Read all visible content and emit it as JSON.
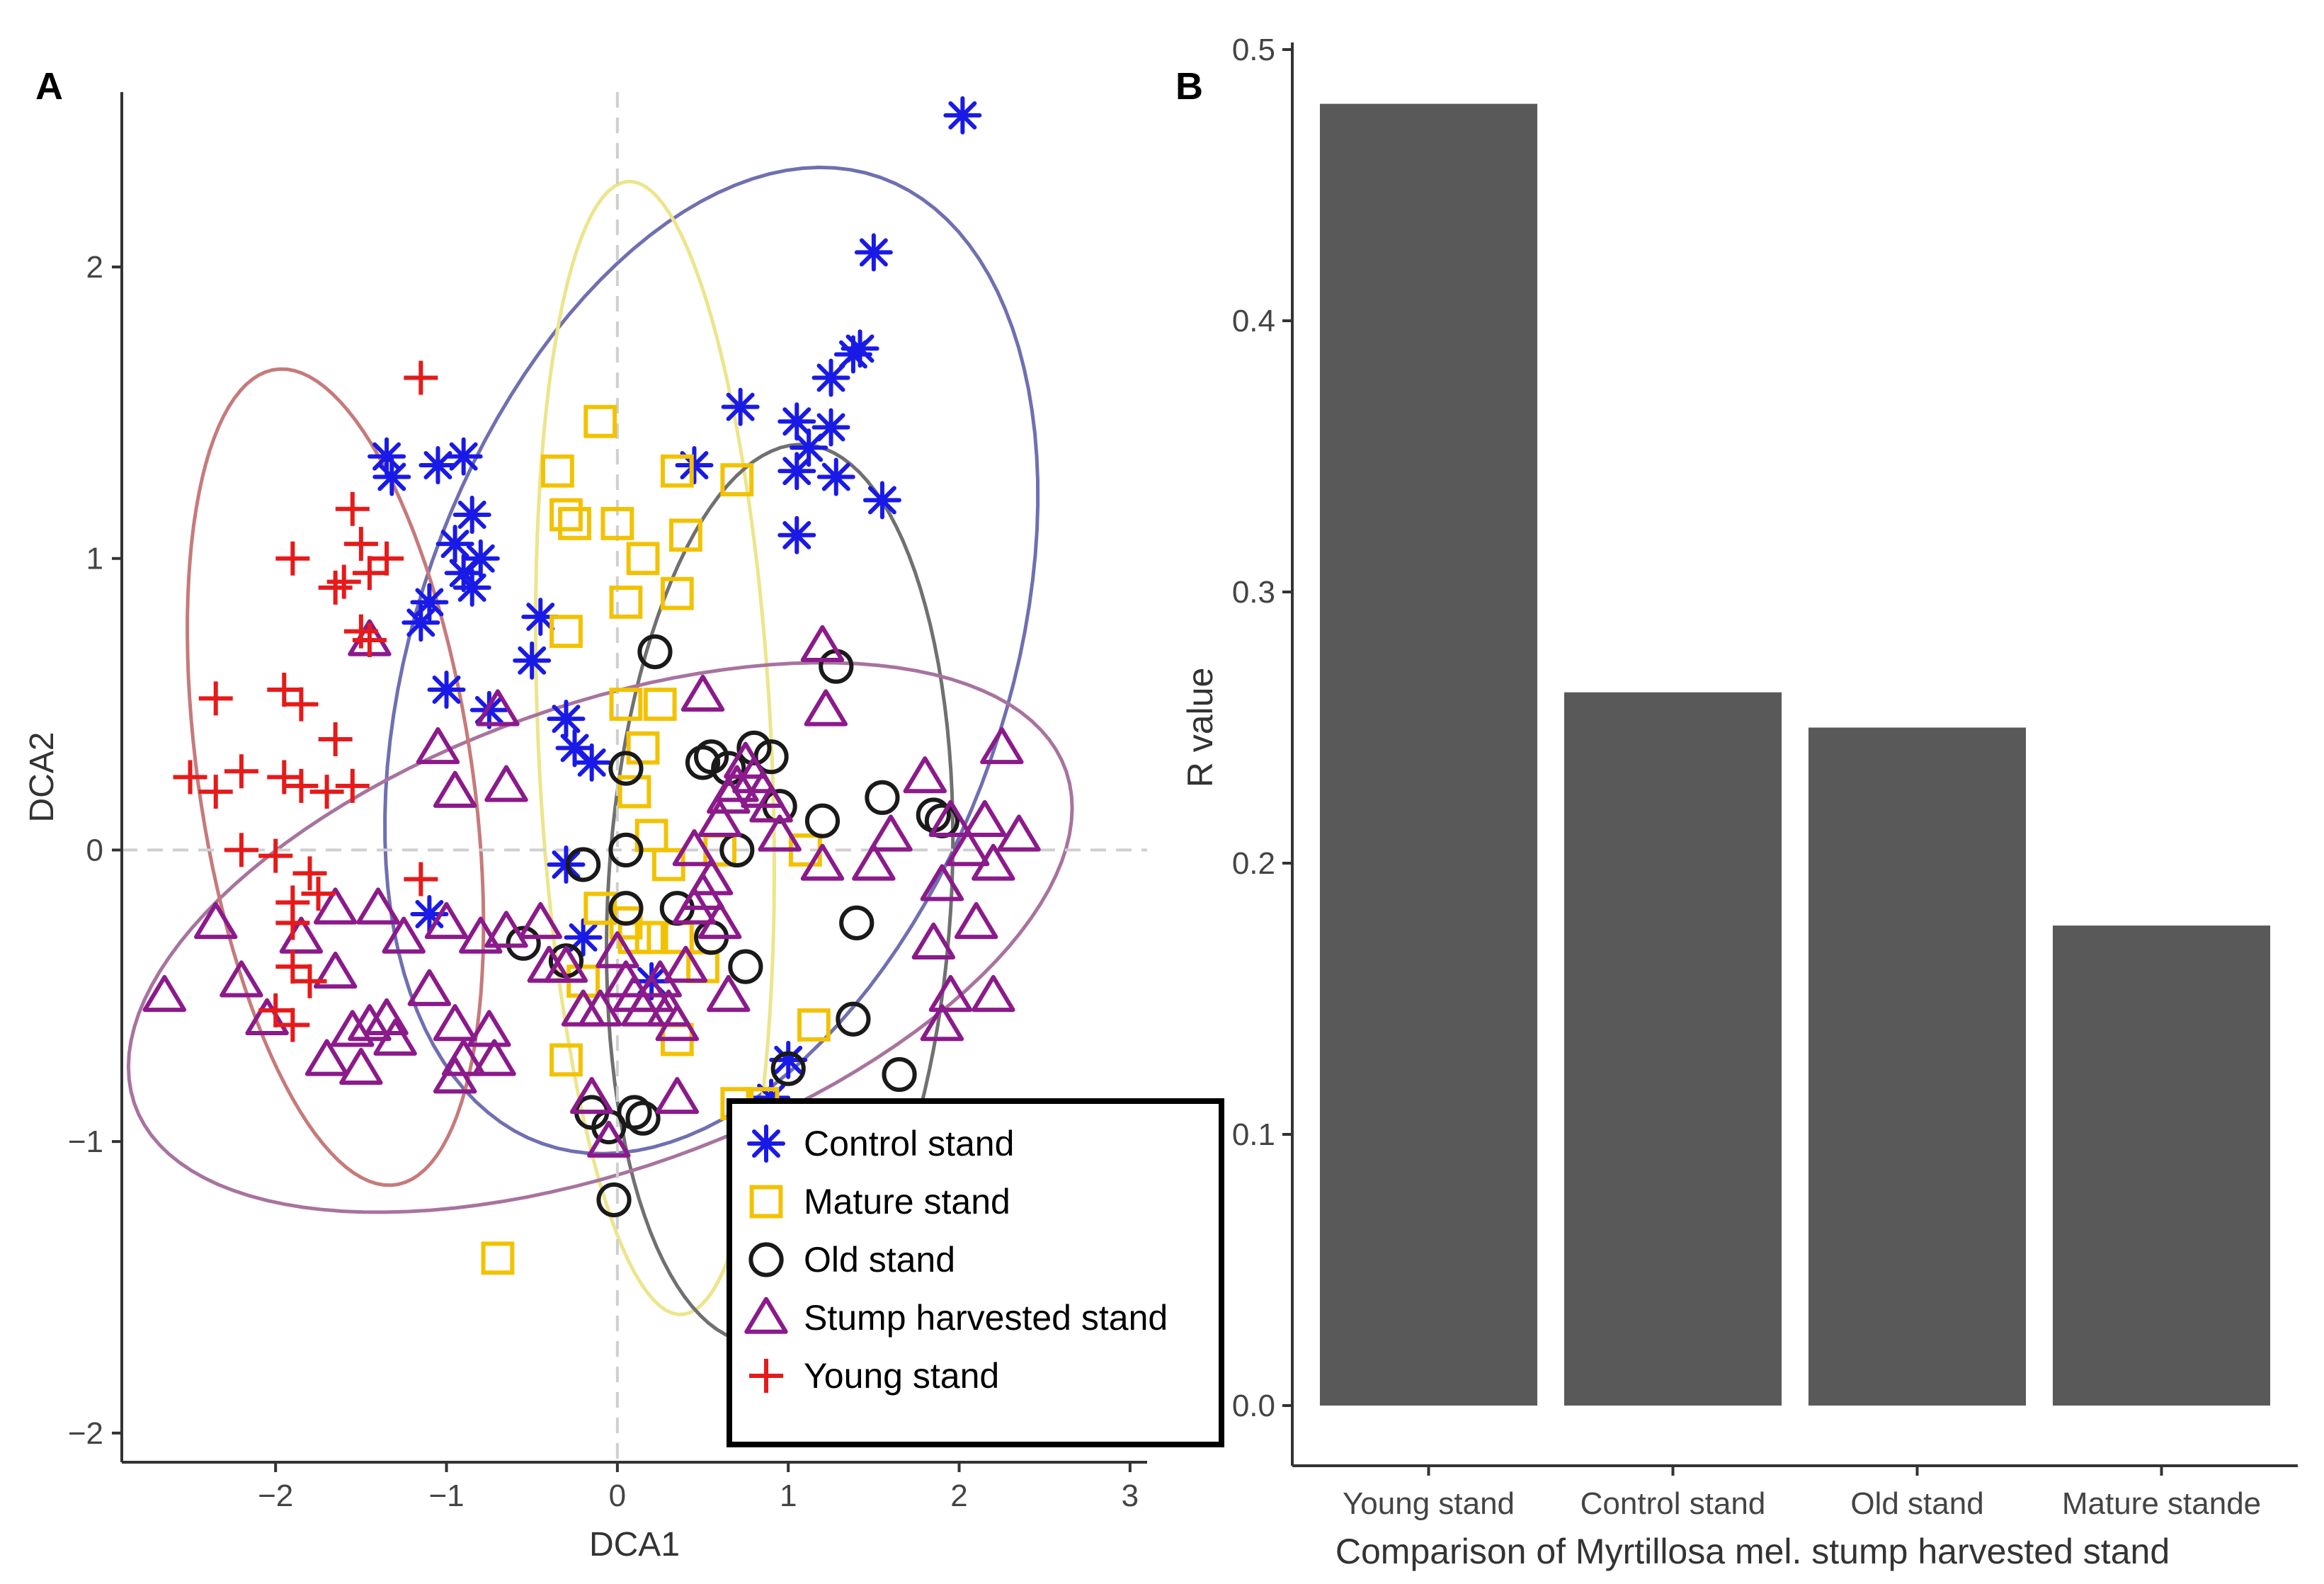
{
  "chart_data": [
    {
      "panel_label": "A",
      "type": "scatter",
      "title": "",
      "xlabel": "DCA1",
      "ylabel": "DCA2",
      "xlim": [
        -2.9,
        3.1
      ],
      "ylim": [
        -2.1,
        2.6
      ],
      "x_ticks": [
        -2,
        -1,
        0,
        1,
        2,
        3
      ],
      "y_ticks": [
        -2,
        -1,
        0,
        1,
        2
      ],
      "x_tick_labels": [
        "−2",
        "−1",
        "0",
        "1",
        "2",
        "3"
      ],
      "y_tick_labels": [
        "−2",
        "−1",
        "0",
        "1",
        "2"
      ],
      "grid": false,
      "reference_lines": {
        "x": 0,
        "y": 0
      },
      "legend_position": "bottom-right",
      "series": [
        {
          "name": "Control stand",
          "marker": "asterisk",
          "color": "#1a1ae6",
          "ellipse_color": "#6f6fb2",
          "ellipse": {
            "cx": 0.55,
            "cy": 0.65,
            "rx": 2.1,
            "ry": 1.45,
            "angle_deg": 35
          },
          "points": [
            [
              2.02,
              2.52
            ],
            [
              1.5,
              2.05
            ],
            [
              1.42,
              1.72
            ],
            [
              1.38,
              1.7
            ],
            [
              1.25,
              1.62
            ],
            [
              1.25,
              1.45
            ],
            [
              1.05,
              1.47
            ],
            [
              1.12,
              1.38
            ],
            [
              1.05,
              1.3
            ],
            [
              1.28,
              1.28
            ],
            [
              1.55,
              1.2
            ],
            [
              0.72,
              1.52
            ],
            [
              0.45,
              1.32
            ],
            [
              1.05,
              1.08
            ],
            [
              -1.35,
              1.35
            ],
            [
              -1.32,
              1.28
            ],
            [
              -1.05,
              1.32
            ],
            [
              -0.9,
              1.35
            ],
            [
              -0.85,
              1.15
            ],
            [
              -0.95,
              1.05
            ],
            [
              -0.9,
              0.95
            ],
            [
              -0.8,
              1.0
            ],
            [
              -0.85,
              0.9
            ],
            [
              -1.1,
              0.85
            ],
            [
              -1.15,
              0.78
            ],
            [
              -0.45,
              0.8
            ],
            [
              -0.5,
              0.65
            ],
            [
              -1.0,
              0.55
            ],
            [
              -0.75,
              0.48
            ],
            [
              -0.3,
              0.45
            ],
            [
              -0.25,
              0.35
            ],
            [
              -0.15,
              0.3
            ],
            [
              -0.3,
              -0.05
            ],
            [
              -1.1,
              -0.22
            ],
            [
              -0.2,
              -0.3
            ],
            [
              0.2,
              -0.45
            ],
            [
              1.0,
              -0.72
            ],
            [
              0.9,
              -0.85
            ]
          ]
        },
        {
          "name": "Mature stand",
          "marker": "square",
          "color": "#f2c200",
          "ellipse_color": "#ece58c",
          "ellipse": {
            "cx": 0.22,
            "cy": 0.35,
            "rx": 0.68,
            "ry": 1.95,
            "angle_deg": 5
          },
          "points": [
            [
              -0.1,
              1.47
            ],
            [
              -0.35,
              1.3
            ],
            [
              -0.3,
              1.15
            ],
            [
              -0.25,
              1.12
            ],
            [
              0.0,
              1.12
            ],
            [
              0.35,
              1.3
            ],
            [
              0.7,
              1.27
            ],
            [
              0.4,
              1.08
            ],
            [
              0.15,
              1.0
            ],
            [
              0.05,
              0.85
            ],
            [
              0.35,
              0.88
            ],
            [
              -0.3,
              0.75
            ],
            [
              0.05,
              0.5
            ],
            [
              0.25,
              0.5
            ],
            [
              0.15,
              0.35
            ],
            [
              0.1,
              0.2
            ],
            [
              0.2,
              0.05
            ],
            [
              0.3,
              -0.05
            ],
            [
              0.6,
              0.0
            ],
            [
              1.1,
              0.0
            ],
            [
              -0.1,
              -0.2
            ],
            [
              0.05,
              -0.25
            ],
            [
              0.1,
              -0.3
            ],
            [
              0.2,
              -0.3
            ],
            [
              0.35,
              -0.3
            ],
            [
              0.5,
              -0.4
            ],
            [
              -0.2,
              -0.45
            ],
            [
              0.35,
              -0.65
            ],
            [
              1.15,
              -0.6
            ],
            [
              -0.3,
              -0.72
            ],
            [
              0.7,
              -0.87
            ],
            [
              0.85,
              -0.87
            ],
            [
              -0.7,
              -1.4
            ]
          ]
        },
        {
          "name": "Old stand",
          "marker": "circle",
          "color": "#1a1a1a",
          "ellipse_color": "#707070",
          "ellipse": {
            "cx": 0.95,
            "cy": -0.15,
            "rx": 1.0,
            "ry": 1.55,
            "angle_deg": -8
          },
          "points": [
            [
              0.22,
              0.68
            ],
            [
              1.28,
              0.63
            ],
            [
              0.8,
              0.35
            ],
            [
              0.9,
              0.32
            ],
            [
              0.5,
              0.3
            ],
            [
              0.55,
              0.32
            ],
            [
              0.65,
              0.28
            ],
            [
              0.05,
              0.28
            ],
            [
              1.55,
              0.18
            ],
            [
              1.85,
              0.12
            ],
            [
              1.9,
              0.1
            ],
            [
              1.2,
              0.1
            ],
            [
              0.95,
              0.15
            ],
            [
              0.05,
              0.0
            ],
            [
              0.7,
              0.0
            ],
            [
              -0.2,
              -0.05
            ],
            [
              0.05,
              -0.2
            ],
            [
              0.35,
              -0.2
            ],
            [
              -0.55,
              -0.32
            ],
            [
              -0.3,
              -0.38
            ],
            [
              0.55,
              -0.3
            ],
            [
              1.4,
              -0.25
            ],
            [
              0.75,
              -0.4
            ],
            [
              1.38,
              -0.58
            ],
            [
              1.65,
              -0.77
            ],
            [
              1.0,
              -0.75
            ],
            [
              -0.15,
              -0.9
            ],
            [
              -0.05,
              -0.95
            ],
            [
              0.1,
              -0.9
            ],
            [
              0.15,
              -0.92
            ],
            [
              -0.02,
              -1.2
            ]
          ]
        },
        {
          "name": "Stump harvested stand",
          "marker": "triangle",
          "color": "#8b1a8b",
          "ellipse_color": "#a8739e",
          "ellipse": {
            "cx": -0.1,
            "cy": -0.3,
            "rx": 2.8,
            "ry": 0.82,
            "angle_deg": 10
          },
          "points": [
            [
              -2.65,
              -0.5
            ],
            [
              -2.35,
              -0.25
            ],
            [
              -2.2,
              -0.45
            ],
            [
              -2.05,
              -0.58
            ],
            [
              -1.85,
              -0.3
            ],
            [
              -1.7,
              -0.72
            ],
            [
              -1.65,
              -0.2
            ],
            [
              -1.65,
              -0.42
            ],
            [
              -1.55,
              -0.62
            ],
            [
              -1.5,
              -0.75
            ],
            [
              -1.45,
              -0.6
            ],
            [
              -1.4,
              -0.2
            ],
            [
              -1.35,
              -0.58
            ],
            [
              -1.3,
              -0.65
            ],
            [
              -1.25,
              -0.3
            ],
            [
              -1.1,
              -0.48
            ],
            [
              -1.0,
              -0.25
            ],
            [
              -0.95,
              -0.6
            ],
            [
              -0.95,
              -0.78
            ],
            [
              -0.9,
              -0.72
            ],
            [
              -0.8,
              -0.3
            ],
            [
              -0.75,
              -0.62
            ],
            [
              -0.72,
              -0.72
            ],
            [
              -0.65,
              -0.28
            ],
            [
              -1.45,
              0.72
            ],
            [
              -1.05,
              0.35
            ],
            [
              -0.95,
              0.2
            ],
            [
              -0.7,
              0.48
            ],
            [
              -0.65,
              0.22
            ],
            [
              -0.45,
              -0.25
            ],
            [
              -0.4,
              -0.4
            ],
            [
              -0.3,
              -0.4
            ],
            [
              -0.2,
              -0.55
            ],
            [
              -0.1,
              -0.55
            ],
            [
              0.0,
              -0.35
            ],
            [
              0.05,
              -0.45
            ],
            [
              0.1,
              -0.5
            ],
            [
              0.15,
              -0.55
            ],
            [
              0.2,
              -0.5
            ],
            [
              0.25,
              -0.45
            ],
            [
              0.3,
              -0.55
            ],
            [
              0.35,
              -0.6
            ],
            [
              0.4,
              -0.4
            ],
            [
              0.45,
              -0.2
            ],
            [
              0.5,
              -0.15
            ],
            [
              0.55,
              -0.1
            ],
            [
              0.45,
              0.0
            ],
            [
              0.6,
              0.1
            ],
            [
              0.65,
              0.18
            ],
            [
              0.7,
              0.22
            ],
            [
              0.75,
              0.3
            ],
            [
              0.8,
              0.25
            ],
            [
              0.85,
              0.2
            ],
            [
              0.9,
              0.15
            ],
            [
              0.95,
              0.05
            ],
            [
              0.6,
              -0.25
            ],
            [
              0.65,
              -0.5
            ],
            [
              0.5,
              0.53
            ],
            [
              1.2,
              0.7
            ],
            [
              1.22,
              0.48
            ],
            [
              1.5,
              -0.05
            ],
            [
              1.2,
              -0.05
            ],
            [
              1.6,
              0.05
            ],
            [
              1.8,
              0.25
            ],
            [
              1.95,
              0.1
            ],
            [
              2.05,
              0.0
            ],
            [
              2.15,
              0.1
            ],
            [
              2.25,
              0.35
            ],
            [
              2.35,
              0.05
            ],
            [
              2.2,
              -0.05
            ],
            [
              1.9,
              -0.12
            ],
            [
              2.1,
              -0.25
            ],
            [
              1.85,
              -0.32
            ],
            [
              1.95,
              -0.5
            ],
            [
              2.2,
              -0.5
            ],
            [
              1.9,
              -0.6
            ],
            [
              0.35,
              -0.85
            ],
            [
              -0.15,
              -0.85
            ],
            [
              -0.05,
              -1.0
            ]
          ]
        },
        {
          "name": "Young stand",
          "marker": "plus",
          "color": "#e61a1a",
          "ellipse_color": "#c77a7a",
          "ellipse": {
            "cx": -1.65,
            "cy": 0.25,
            "rx": 0.78,
            "ry": 1.45,
            "angle_deg": 18
          },
          "points": [
            [
              -1.15,
              1.62
            ],
            [
              -1.55,
              1.17
            ],
            [
              -1.5,
              1.05
            ],
            [
              -1.35,
              1.0
            ],
            [
              -1.45,
              0.95
            ],
            [
              -1.6,
              0.92
            ],
            [
              -1.9,
              1.0
            ],
            [
              -1.65,
              0.9
            ],
            [
              -1.5,
              0.75
            ],
            [
              -1.45,
              0.72
            ],
            [
              -2.35,
              0.52
            ],
            [
              -1.95,
              0.55
            ],
            [
              -1.85,
              0.5
            ],
            [
              -1.65,
              0.38
            ],
            [
              -1.95,
              0.25
            ],
            [
              -2.2,
              0.27
            ],
            [
              -1.85,
              0.22
            ],
            [
              -1.7,
              0.2
            ],
            [
              -1.55,
              0.22
            ],
            [
              -2.5,
              0.25
            ],
            [
              -2.35,
              0.2
            ],
            [
              -2.2,
              0.0
            ],
            [
              -2.0,
              -0.02
            ],
            [
              -1.8,
              -0.08
            ],
            [
              -1.75,
              -0.15
            ],
            [
              -1.9,
              -0.18
            ],
            [
              -1.15,
              -0.1
            ],
            [
              -1.9,
              -0.25
            ],
            [
              -1.9,
              -0.4
            ],
            [
              -1.8,
              -0.45
            ],
            [
              -2.0,
              -0.55
            ],
            [
              -1.9,
              -0.6
            ]
          ]
        }
      ]
    },
    {
      "panel_label": "B",
      "type": "bar",
      "title": "",
      "categories": [
        "Young stand",
        "Control stand",
        "Old stand",
        "Mature stande"
      ],
      "values": [
        0.48,
        0.263,
        0.25,
        0.177
      ],
      "color": "#595959",
      "xlabel": "Comparison of Myrtillosa mel. stump harvested stand",
      "ylabel": "R value",
      "ylim": [
        0,
        0.5
      ],
      "y_ticks": [
        0.0,
        0.1,
        0.2,
        0.3,
        0.4,
        0.5
      ],
      "y_tick_labels": [
        "0.0",
        "0.1",
        "0.2",
        "0.3",
        "0.4",
        "0.5"
      ],
      "grid": false
    }
  ]
}
